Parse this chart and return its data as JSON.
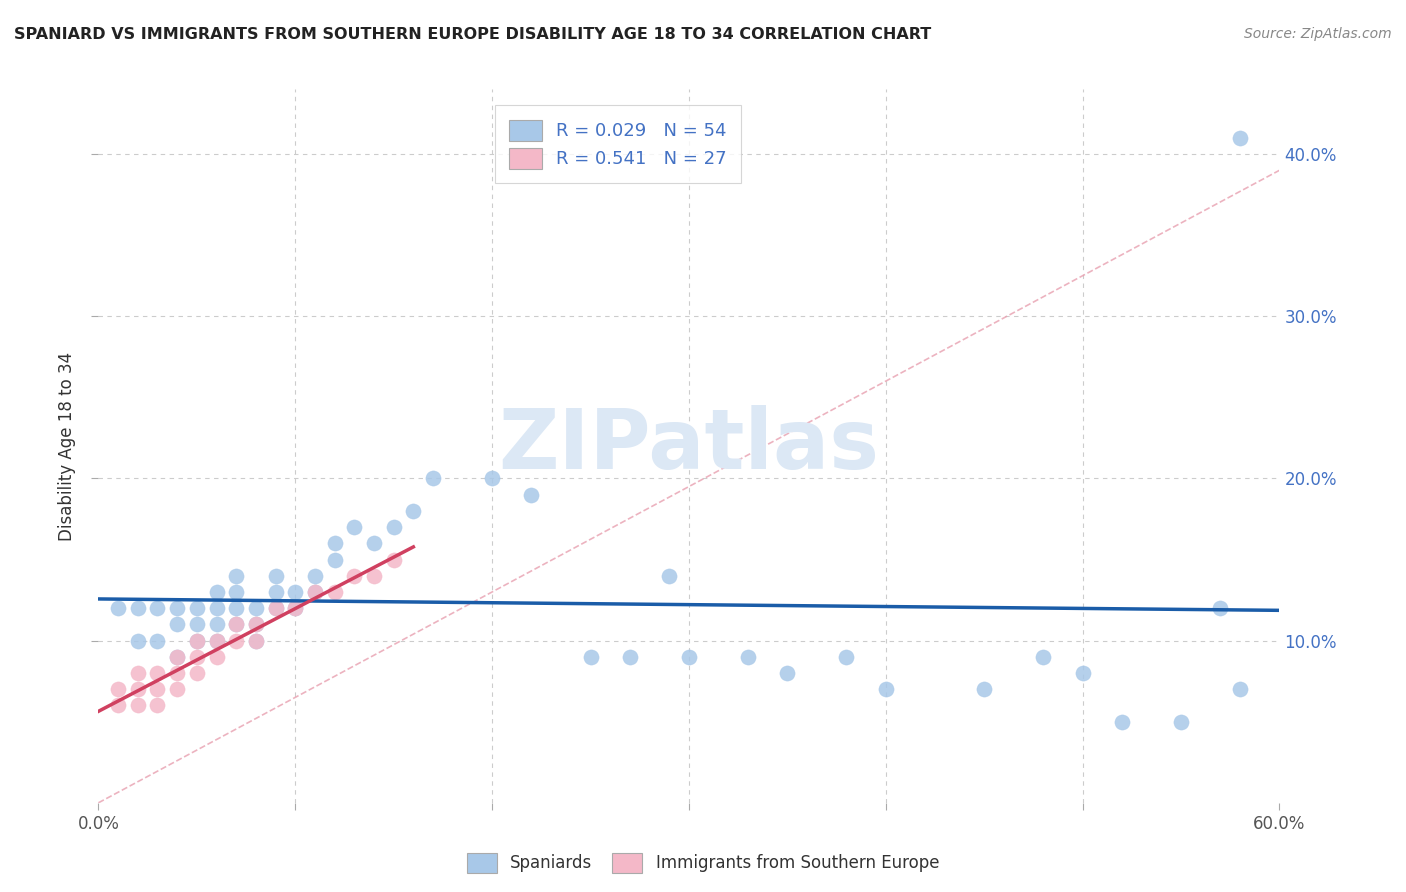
{
  "title": "SPANIARD VS IMMIGRANTS FROM SOUTHERN EUROPE DISABILITY AGE 18 TO 34 CORRELATION CHART",
  "source": "Source: ZipAtlas.com",
  "ylabel": "Disability Age 18 to 34",
  "xlim": [
    0.0,
    0.6
  ],
  "ylim": [
    0.0,
    0.44
  ],
  "background_color": "#ffffff",
  "grid_color": "#cccccc",
  "watermark_text": "ZIPatlas",
  "watermark_color": "#dce8f5",
  "legend_R1": "0.029",
  "legend_N1": "54",
  "legend_R2": "0.541",
  "legend_N2": "27",
  "blue_scatter_color": "#a8c8e8",
  "pink_scatter_color": "#f4b8c8",
  "blue_line_color": "#1a5ca8",
  "pink_line_color": "#d04060",
  "diag_line_color": "#e8a0b0",
  "right_tick_color": "#4472c4",
  "spaniards_x": [
    0.01,
    0.02,
    0.02,
    0.03,
    0.03,
    0.04,
    0.04,
    0.04,
    0.05,
    0.05,
    0.05,
    0.06,
    0.06,
    0.06,
    0.06,
    0.07,
    0.07,
    0.07,
    0.07,
    0.08,
    0.08,
    0.08,
    0.09,
    0.09,
    0.09,
    0.1,
    0.1,
    0.11,
    0.11,
    0.12,
    0.12,
    0.13,
    0.14,
    0.15,
    0.16,
    0.17,
    0.2,
    0.22,
    0.25,
    0.27,
    0.29,
    0.3,
    0.33,
    0.35,
    0.38,
    0.4,
    0.45,
    0.48,
    0.5,
    0.52,
    0.55,
    0.57,
    0.58,
    0.58
  ],
  "spaniards_y": [
    0.12,
    0.12,
    0.1,
    0.12,
    0.1,
    0.09,
    0.12,
    0.11,
    0.1,
    0.12,
    0.11,
    0.13,
    0.12,
    0.11,
    0.1,
    0.14,
    0.13,
    0.12,
    0.11,
    0.12,
    0.11,
    0.1,
    0.14,
    0.13,
    0.12,
    0.13,
    0.12,
    0.14,
    0.13,
    0.16,
    0.15,
    0.17,
    0.16,
    0.17,
    0.18,
    0.2,
    0.2,
    0.19,
    0.09,
    0.09,
    0.14,
    0.09,
    0.09,
    0.08,
    0.09,
    0.07,
    0.07,
    0.09,
    0.08,
    0.05,
    0.05,
    0.12,
    0.07,
    0.41
  ],
  "immigrants_x": [
    0.01,
    0.01,
    0.02,
    0.02,
    0.02,
    0.03,
    0.03,
    0.03,
    0.04,
    0.04,
    0.04,
    0.05,
    0.05,
    0.05,
    0.06,
    0.06,
    0.07,
    0.07,
    0.08,
    0.08,
    0.09,
    0.1,
    0.11,
    0.12,
    0.13,
    0.14,
    0.15
  ],
  "immigrants_y": [
    0.07,
    0.06,
    0.08,
    0.07,
    0.06,
    0.08,
    0.07,
    0.06,
    0.09,
    0.08,
    0.07,
    0.1,
    0.09,
    0.08,
    0.1,
    0.09,
    0.11,
    0.1,
    0.11,
    0.1,
    0.12,
    0.12,
    0.13,
    0.13,
    0.14,
    0.14,
    0.15
  ]
}
